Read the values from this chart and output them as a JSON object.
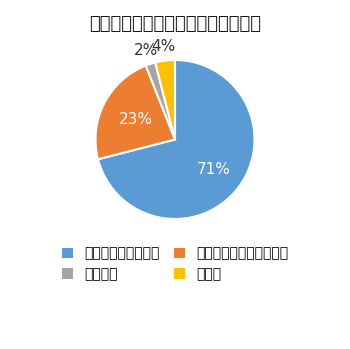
{
  "title": "食農教育の必要性と取り組みの現状",
  "slices": [
    71,
    23,
    2,
    4
  ],
  "labels": [
    "必要、実施している",
    "必要、実施できていない",
    "必要ない",
    "その他"
  ],
  "colors": [
    "#5B9BD5",
    "#ED7D31",
    "#A5A5A5",
    "#FFC000"
  ],
  "pct_labels": [
    "71%",
    "23%",
    "2%",
    "4%"
  ],
  "startangle": 90,
  "legend_order": [
    0,
    2,
    1,
    3
  ],
  "legend_labels": [
    "必要、実施している",
    "必要ない",
    "必要、実施できていない",
    "その他"
  ],
  "legend_colors": [
    "#5B9BD5",
    "#A5A5A5",
    "#ED7D31",
    "#FFC000"
  ],
  "background_color": "#ffffff",
  "title_fontsize": 13,
  "legend_fontsize": 8,
  "pct_fontsize": 11
}
